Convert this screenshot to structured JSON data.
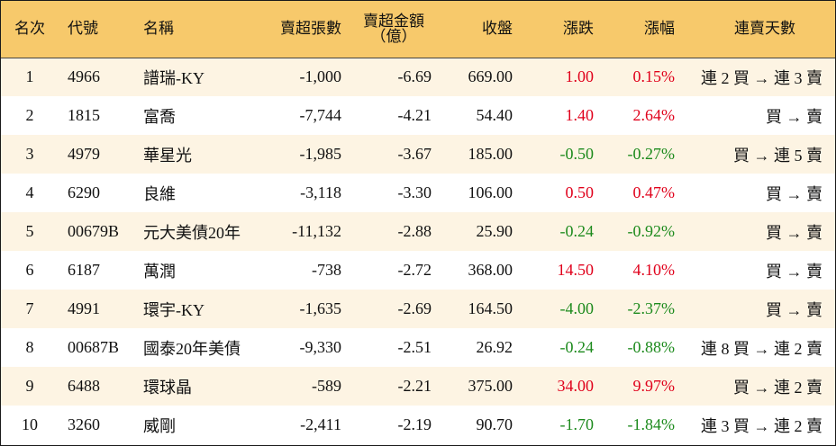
{
  "header": {
    "rank": "名次",
    "code": "代號",
    "name": "名稱",
    "short_lots": "賣超張數",
    "short_amount_line1": "賣超金額",
    "short_amount_line2": "（億）",
    "close": "收盤",
    "change": "漲跌",
    "change_pct": "漲幅",
    "streak": "連賣天數"
  },
  "rows": [
    {
      "rank": "1",
      "code": "4966",
      "name": "譜瑞-KY",
      "short_lots": "-1,000",
      "short_amount": "-6.69",
      "close": "669.00",
      "change": "1.00",
      "change_pct": "0.15%",
      "streak": "連 2 買 → 連 3 賣",
      "trend": "up"
    },
    {
      "rank": "2",
      "code": "1815",
      "name": "富喬",
      "short_lots": "-7,744",
      "short_amount": "-4.21",
      "close": "54.40",
      "change": "1.40",
      "change_pct": "2.64%",
      "streak": "買 → 賣",
      "trend": "up"
    },
    {
      "rank": "3",
      "code": "4979",
      "name": "華星光",
      "short_lots": "-1,985",
      "short_amount": "-3.67",
      "close": "185.00",
      "change": "-0.50",
      "change_pct": "-0.27%",
      "streak": "買 → 連 5 賣",
      "trend": "down"
    },
    {
      "rank": "4",
      "code": "6290",
      "name": "良維",
      "short_lots": "-3,118",
      "short_amount": "-3.30",
      "close": "106.00",
      "change": "0.50",
      "change_pct": "0.47%",
      "streak": "買 → 賣",
      "trend": "up"
    },
    {
      "rank": "5",
      "code": "00679B",
      "name": "元大美債20年",
      "short_lots": "-11,132",
      "short_amount": "-2.88",
      "close": "25.90",
      "change": "-0.24",
      "change_pct": "-0.92%",
      "streak": "買 → 賣",
      "trend": "down"
    },
    {
      "rank": "6",
      "code": "6187",
      "name": "萬潤",
      "short_lots": "-738",
      "short_amount": "-2.72",
      "close": "368.00",
      "change": "14.50",
      "change_pct": "4.10%",
      "streak": "買 → 賣",
      "trend": "up"
    },
    {
      "rank": "7",
      "code": "4991",
      "name": "環宇-KY",
      "short_lots": "-1,635",
      "short_amount": "-2.69",
      "close": "164.50",
      "change": "-4.00",
      "change_pct": "-2.37%",
      "streak": "買 → 賣",
      "trend": "down"
    },
    {
      "rank": "8",
      "code": "00687B",
      "name": "國泰20年美債",
      "short_lots": "-9,330",
      "short_amount": "-2.51",
      "close": "26.92",
      "change": "-0.24",
      "change_pct": "-0.88%",
      "streak": "連 8 買 → 連 2 賣",
      "trend": "down"
    },
    {
      "rank": "9",
      "code": "6488",
      "name": "環球晶",
      "short_lots": "-589",
      "short_amount": "-2.21",
      "close": "375.00",
      "change": "34.00",
      "change_pct": "9.97%",
      "streak": "買 → 連 2 賣",
      "trend": "up"
    },
    {
      "rank": "10",
      "code": "3260",
      "name": "威剛",
      "short_lots": "-2,411",
      "short_amount": "-2.19",
      "close": "90.70",
      "change": "-1.70",
      "change_pct": "-1.84%",
      "streak": "連 3 買 → 連 2 賣",
      "trend": "down"
    }
  ],
  "colors": {
    "header_bg": "#f7c96b",
    "odd_row_bg": "#fdf4e3",
    "up": "#e0001b",
    "down": "#1c8a1c"
  }
}
